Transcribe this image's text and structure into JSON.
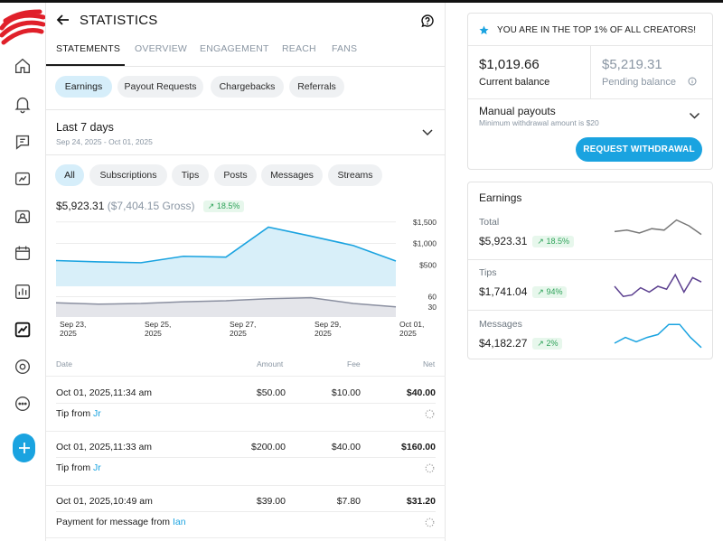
{
  "header": {
    "title": "STATISTICS"
  },
  "tabs": [
    {
      "label": "STATEMENTS",
      "active": true
    },
    {
      "label": "OVERVIEW"
    },
    {
      "label": "ENGAGEMENT"
    },
    {
      "label": "REACH"
    },
    {
      "label": "FANS"
    }
  ],
  "subtabs": [
    {
      "label": "Earnings",
      "active": true
    },
    {
      "label": "Payout Requests"
    },
    {
      "label": "Chargebacks"
    },
    {
      "label": "Referrals"
    }
  ],
  "range": {
    "title": "Last 7 days",
    "subtitle": "Sep 24, 2025 - Oct 01, 2025"
  },
  "filters": [
    {
      "label": "All",
      "active": true
    },
    {
      "label": "Subscriptions"
    },
    {
      "label": "Tips"
    },
    {
      "label": "Posts"
    },
    {
      "label": "Messages"
    },
    {
      "label": "Streams"
    }
  ],
  "totals": {
    "net": "$5,923.31",
    "gross": "($7,404.15 Gross)",
    "change": "18.5%"
  },
  "chart_data": {
    "type": "area",
    "x": [
      "Sep 23, 2025",
      "Sep 24, 2025",
      "Sep 25, 2025",
      "Sep 26, 2025",
      "Sep 27, 2025",
      "Sep 28, 2025",
      "Sep 29, 2025",
      "Sep 30, 2025",
      "Oct 01, 2025"
    ],
    "x_tick_labels": [
      [
        "Sep 23,",
        "2025"
      ],
      [
        "Sep 25,",
        "2025"
      ],
      [
        "Sep 27,",
        "2025"
      ],
      [
        "Sep 29,",
        "2025"
      ],
      [
        "Oct 01,",
        "2025"
      ]
    ],
    "earnings": {
      "values": [
        600,
        570,
        550,
        700,
        680,
        1380,
        1170,
        950,
        590
      ],
      "ticks": [
        "$1,500",
        "$1,000",
        "$500"
      ],
      "ylim": [
        0,
        1600
      ],
      "color": "#1aa3e0",
      "fill": "#d8eff9"
    },
    "count": {
      "values": [
        42,
        38,
        40,
        45,
        48,
        54,
        57,
        40,
        30
      ],
      "ticks": [
        "60",
        "30"
      ],
      "ylim": [
        0,
        80
      ],
      "color": "#8a8fa0",
      "fill": "#e4e5ea"
    },
    "grid": true
  },
  "table": {
    "headers": {
      "date": "Date",
      "amount": "Amount",
      "fee": "Fee",
      "net": "Net"
    },
    "rows": [
      {
        "date": "Oct 01, 2025,11:34 am",
        "amount": "$50.00",
        "fee": "$10.00",
        "net": "$40.00",
        "desc": "Tip from ",
        "who": "Jr"
      },
      {
        "date": "Oct 01, 2025,11:33 am",
        "amount": "$200.00",
        "fee": "$40.00",
        "net": "$160.00",
        "desc": "Tip from ",
        "who": "Jr"
      },
      {
        "date": "Oct 01, 2025,10:49 am",
        "amount": "$39.00",
        "fee": "$7.80",
        "net": "$31.20",
        "desc": "Payment for message from ",
        "who": "Ian"
      }
    ]
  },
  "balance": {
    "banner": "YOU ARE IN THE TOP 1% OF ALL CREATORS!",
    "current_value": "$1,019.66",
    "current_label": "Current balance",
    "pending_value": "$5,219.31",
    "pending_label": "Pending balance",
    "payout_title": "Manual payouts",
    "payout_sub": "Minimum withdrawal amount is $20",
    "withdraw_label": "REQUEST WITHDRAWAL"
  },
  "earnings_card": {
    "title": "Earnings",
    "items": [
      {
        "label": "Total",
        "value": "$5,923.31",
        "change": "18.5%",
        "color": "#777777",
        "spark": [
          0.45,
          0.4,
          0.5,
          0.35,
          0.4,
          0.05,
          0.25,
          0.55
        ]
      },
      {
        "label": "Tips",
        "value": "$1,741.04",
        "change": "94%",
        "color": "#5b3f8f",
        "spark": [
          0.5,
          0.85,
          0.8,
          0.55,
          0.7,
          0.5,
          0.6,
          0.1,
          0.7,
          0.2,
          0.35
        ]
      },
      {
        "label": "Messages",
        "value": "$4,182.27",
        "change": "2%",
        "color": "#1aa3e0",
        "spark": [
          0.75,
          0.55,
          0.7,
          0.55,
          0.45,
          0.1,
          0.1,
          0.55,
          0.9
        ]
      }
    ]
  },
  "icons": [
    "back-arrow-icon",
    "help-icon",
    "home-icon",
    "bell-icon",
    "chat-icon",
    "vault-icon",
    "image-icon",
    "calendar-icon",
    "bar-chart-icon",
    "trend-icon",
    "profile-icon",
    "more-icon",
    "plus-icon",
    "star-icon",
    "info-icon"
  ]
}
